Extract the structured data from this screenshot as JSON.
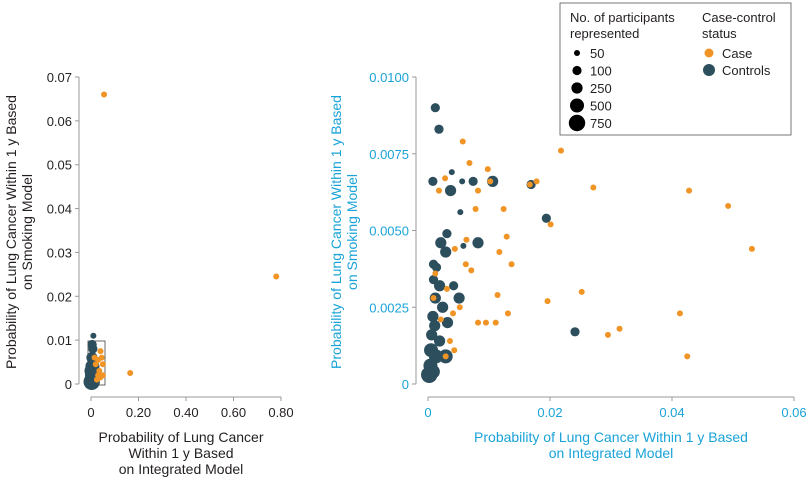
{
  "chart_data": [
    {
      "type": "scatter",
      "panel": "left",
      "xlabel": [
        "Probability of Lung Cancer",
        "Within 1 y Based",
        "on Integrated Model"
      ],
      "ylabel": [
        "Probability of Lung Cancer Within 1 y Based",
        "on Smoking Model"
      ],
      "xlim": [
        0,
        0.8
      ],
      "ylim": [
        0,
        0.07
      ],
      "xticks": [
        0,
        0.2,
        0.4,
        0.6,
        0.8
      ],
      "xtick_labels": [
        "0",
        "0.20",
        "0.40",
        "0.60",
        "0.80"
      ],
      "yticks": [
        0,
        0.01,
        0.02,
        0.03,
        0.04,
        0.05,
        0.06,
        0.07
      ],
      "ytick_labels": [
        "0",
        "0.01",
        "0.02",
        "0.03",
        "0.04",
        "0.05",
        "0.06",
        "0.07"
      ],
      "grid": false,
      "inset_box": {
        "x": [
          0,
          0.06
        ],
        "y": [
          0,
          0.01
        ]
      },
      "series": [
        {
          "name": "Case",
          "color": "#EF9425",
          "points": [
            {
              "x": 0.055,
              "y": 0.066,
              "n": 50
            },
            {
              "x": 0.78,
              "y": 0.0245,
              "n": 50
            },
            {
              "x": 0.165,
              "y": 0.0025,
              "n": 50
            },
            {
              "x": 0.04,
              "y": 0.0075,
              "n": 50
            },
            {
              "x": 0.045,
              "y": 0.006,
              "n": 50
            },
            {
              "x": 0.05,
              "y": 0.0045,
              "n": 50
            },
            {
              "x": 0.03,
              "y": 0.0055,
              "n": 50
            },
            {
              "x": 0.02,
              "y": 0.0045,
              "n": 50
            },
            {
              "x": 0.035,
              "y": 0.003,
              "n": 50
            },
            {
              "x": 0.03,
              "y": 0.002,
              "n": 50
            },
            {
              "x": 0.04,
              "y": 0.0015,
              "n": 50
            },
            {
              "x": 0.025,
              "y": 0.001,
              "n": 50
            },
            {
              "x": 0.015,
              "y": 0.006,
              "n": 50
            },
            {
              "x": 0.05,
              "y": 0.002,
              "n": 50
            }
          ]
        },
        {
          "name": "Controls",
          "color": "#2C4E5D",
          "points": [
            {
              "x": 0.01,
              "y": 0.011,
              "n": 50
            },
            {
              "x": 0.005,
              "y": 0.009,
              "n": 100
            },
            {
              "x": 0.008,
              "y": 0.008,
              "n": 100
            },
            {
              "x": 0.004,
              "y": 0.006,
              "n": 250
            },
            {
              "x": 0.006,
              "y": 0.004,
              "n": 500
            },
            {
              "x": 0.004,
              "y": 0.002,
              "n": 500
            },
            {
              "x": 0.003,
              "y": 0.0005,
              "n": 750
            },
            {
              "x": 0.012,
              "y": 0.0005,
              "n": 250
            },
            {
              "x": 0.01,
              "y": 0.002,
              "n": 250
            },
            {
              "x": 0.002,
              "y": 0.003,
              "n": 500
            },
            {
              "x": 0.015,
              "y": 0.003,
              "n": 100
            }
          ]
        }
      ]
    },
    {
      "type": "scatter",
      "panel": "right",
      "xlabel": [
        "Probability of Lung Cancer Within 1 y Based",
        "on Integrated Model"
      ],
      "ylabel": [
        "Probability of Lung Cancer Within 1 y Based",
        "on Smoking Model"
      ],
      "xlim": [
        0,
        0.06
      ],
      "ylim": [
        0,
        0.01
      ],
      "xticks": [
        0,
        0.02,
        0.04,
        0.06
      ],
      "xtick_labels": [
        "0",
        "0.02",
        "0.04",
        "0.06"
      ],
      "yticks": [
        0,
        0.0025,
        0.005,
        0.0075,
        0.01
      ],
      "ytick_labels": [
        "0",
        "0.0025",
        "0.0050",
        "0.0075",
        "0.0100"
      ],
      "grid": false,
      "legend": {
        "placement": "top-right",
        "size_title": [
          "No. of participants",
          "represented"
        ],
        "size_entries": [
          {
            "label": "50",
            "n": 50
          },
          {
            "label": "100",
            "n": 100
          },
          {
            "label": "250",
            "n": 250
          },
          {
            "label": "500",
            "n": 500
          },
          {
            "label": "750",
            "n": 750
          }
        ],
        "status_title": [
          "Case-control",
          "status"
        ],
        "status_entries": [
          {
            "label": "Case",
            "color": "#EF9425"
          },
          {
            "label": "Controls",
            "color": "#2C4E5D"
          }
        ]
      },
      "series": [
        {
          "name": "Case",
          "color": "#EF9425",
          "points": [
            {
              "x": 0.0057,
              "y": 0.0079,
              "n": 50
            },
            {
              "x": 0.0068,
              "y": 0.0072,
              "n": 50
            },
            {
              "x": 0.0098,
              "y": 0.007,
              "n": 50
            },
            {
              "x": 0.0218,
              "y": 0.0076,
              "n": 50
            },
            {
              "x": 0.0271,
              "y": 0.0064,
              "n": 50
            },
            {
              "x": 0.0428,
              "y": 0.0063,
              "n": 50
            },
            {
              "x": 0.0492,
              "y": 0.0058,
              "n": 50
            },
            {
              "x": 0.0531,
              "y": 0.0044,
              "n": 50
            },
            {
              "x": 0.0413,
              "y": 0.0023,
              "n": 50
            },
            {
              "x": 0.0425,
              "y": 0.0009,
              "n": 50
            },
            {
              "x": 0.0314,
              "y": 0.0018,
              "n": 50
            },
            {
              "x": 0.0295,
              "y": 0.0016,
              "n": 50
            },
            {
              "x": 0.0252,
              "y": 0.003,
              "n": 50
            },
            {
              "x": 0.0196,
              "y": 0.0027,
              "n": 50
            },
            {
              "x": 0.0201,
              "y": 0.0052,
              "n": 50
            },
            {
              "x": 0.0178,
              "y": 0.0066,
              "n": 50
            },
            {
              "x": 0.0167,
              "y": 0.0065,
              "n": 50
            },
            {
              "x": 0.0124,
              "y": 0.0057,
              "n": 50
            },
            {
              "x": 0.0129,
              "y": 0.0048,
              "n": 50
            },
            {
              "x": 0.0117,
              "y": 0.0043,
              "n": 50
            },
            {
              "x": 0.0137,
              "y": 0.0039,
              "n": 50
            },
            {
              "x": 0.0114,
              "y": 0.0029,
              "n": 50
            },
            {
              "x": 0.0131,
              "y": 0.0023,
              "n": 50
            },
            {
              "x": 0.0111,
              "y": 0.002,
              "n": 50
            },
            {
              "x": 0.0095,
              "y": 0.002,
              "n": 50
            },
            {
              "x": 0.0082,
              "y": 0.002,
              "n": 50
            },
            {
              "x": 0.0102,
              "y": 0.0066,
              "n": 50
            },
            {
              "x": 0.0078,
              "y": 0.0057,
              "n": 50
            },
            {
              "x": 0.0082,
              "y": 0.0063,
              "n": 50
            },
            {
              "x": 0.0018,
              "y": 0.0063,
              "n": 50
            },
            {
              "x": 0.0028,
              "y": 0.0067,
              "n": 50
            },
            {
              "x": 0.0063,
              "y": 0.0047,
              "n": 50
            },
            {
              "x": 0.0062,
              "y": 0.0039,
              "n": 50
            },
            {
              "x": 0.0071,
              "y": 0.0037,
              "n": 50
            },
            {
              "x": 0.0044,
              "y": 0.0044,
              "n": 50
            },
            {
              "x": 0.0031,
              "y": 0.0031,
              "n": 50
            },
            {
              "x": 0.0041,
              "y": 0.0023,
              "n": 50
            },
            {
              "x": 0.0052,
              "y": 0.0025,
              "n": 50
            },
            {
              "x": 0.0036,
              "y": 0.0014,
              "n": 50
            },
            {
              "x": 0.0043,
              "y": 0.0011,
              "n": 50
            },
            {
              "x": 0.0021,
              "y": 0.0021,
              "n": 50
            },
            {
              "x": 0.0012,
              "y": 0.0036,
              "n": 50
            },
            {
              "x": 0.0009,
              "y": 0.0028,
              "n": 50
            },
            {
              "x": 0.0029,
              "y": 0.0009,
              "n": 50
            }
          ]
        },
        {
          "name": "Controls",
          "color": "#2C4E5D",
          "points": [
            {
              "x": 0.0012,
              "y": 0.009,
              "n": 100
            },
            {
              "x": 0.0018,
              "y": 0.0083,
              "n": 100
            },
            {
              "x": 0.0008,
              "y": 0.0066,
              "n": 100
            },
            {
              "x": 0.0037,
              "y": 0.0063,
              "n": 250
            },
            {
              "x": 0.0039,
              "y": 0.0069,
              "n": 50
            },
            {
              "x": 0.0056,
              "y": 0.0066,
              "n": 50
            },
            {
              "x": 0.0074,
              "y": 0.0066,
              "n": 100
            },
            {
              "x": 0.0106,
              "y": 0.0066,
              "n": 250
            },
            {
              "x": 0.0169,
              "y": 0.0065,
              "n": 100
            },
            {
              "x": 0.0053,
              "y": 0.0056,
              "n": 50
            },
            {
              "x": 0.0194,
              "y": 0.0054,
              "n": 100
            },
            {
              "x": 0.0031,
              "y": 0.0049,
              "n": 100
            },
            {
              "x": 0.0021,
              "y": 0.0046,
              "n": 250
            },
            {
              "x": 0.0058,
              "y": 0.0045,
              "n": 50
            },
            {
              "x": 0.0082,
              "y": 0.0046,
              "n": 250
            },
            {
              "x": 0.0029,
              "y": 0.0043,
              "n": 250
            },
            {
              "x": 0.0009,
              "y": 0.0039,
              "n": 100
            },
            {
              "x": 0.0014,
              "y": 0.0038,
              "n": 100
            },
            {
              "x": 0.0009,
              "y": 0.0034,
              "n": 100
            },
            {
              "x": 0.0019,
              "y": 0.0032,
              "n": 250
            },
            {
              "x": 0.0042,
              "y": 0.0032,
              "n": 100
            },
            {
              "x": 0.0012,
              "y": 0.0028,
              "n": 250
            },
            {
              "x": 0.0051,
              "y": 0.0028,
              "n": 250
            },
            {
              "x": 0.0024,
              "y": 0.0025,
              "n": 250
            },
            {
              "x": 0.0008,
              "y": 0.0022,
              "n": 250
            },
            {
              "x": 0.0011,
              "y": 0.0019,
              "n": 250
            },
            {
              "x": 0.0032,
              "y": 0.002,
              "n": 250
            },
            {
              "x": 0.0006,
              "y": 0.0016,
              "n": 250
            },
            {
              "x": 0.0019,
              "y": 0.0014,
              "n": 250
            },
            {
              "x": 0.0005,
              "y": 0.0011,
              "n": 500
            },
            {
              "x": 0.0013,
              "y": 0.0009,
              "n": 500
            },
            {
              "x": 0.0029,
              "y": 0.0009,
              "n": 500
            },
            {
              "x": 0.0004,
              "y": 0.0006,
              "n": 500
            },
            {
              "x": 0.0008,
              "y": 0.0004,
              "n": 500
            },
            {
              "x": 0.0002,
              "y": 0.0003,
              "n": 750
            },
            {
              "x": 0.0241,
              "y": 0.0017,
              "n": 100
            }
          ]
        }
      ]
    }
  ]
}
